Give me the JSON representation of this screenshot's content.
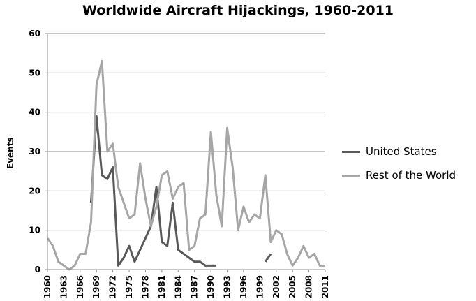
{
  "chart_data": {
    "type": "line",
    "title": "Worldwide Aircraft Hijackings, 1960-2011",
    "ylabel": "Events",
    "xlabel": "",
    "ylim": [
      0,
      60
    ],
    "yticks": [
      0,
      10,
      20,
      30,
      40,
      50,
      60
    ],
    "xtick_labels": [
      "1960",
      "1963",
      "1966",
      "1969",
      "1972",
      "1975",
      "1978",
      "1981",
      "1984",
      "1987",
      "1990",
      "1993",
      "1996",
      "1999",
      "2002",
      "2005",
      "2008",
      "2011"
    ],
    "x": [
      1960,
      1961,
      1962,
      1963,
      1964,
      1965,
      1966,
      1967,
      1968,
      1969,
      1970,
      1971,
      1972,
      1973,
      1974,
      1975,
      1976,
      1977,
      1978,
      1979,
      1980,
      1981,
      1982,
      1983,
      1984,
      1985,
      1986,
      1987,
      1988,
      1989,
      1990,
      1991,
      1992,
      1993,
      1994,
      1995,
      1996,
      1997,
      1998,
      1999,
      2000,
      2001,
      2002,
      2003,
      2004,
      2005,
      2006,
      2007,
      2008,
      2009,
      2010,
      2011
    ],
    "grid": "horizontal",
    "legend_position": "right",
    "series": [
      {
        "name": "United States",
        "color": "#595959",
        "values": [
          null,
          null,
          null,
          null,
          null,
          null,
          null,
          null,
          17,
          39,
          24,
          23,
          26,
          1,
          3,
          6,
          2,
          5,
          8,
          11,
          21,
          7,
          6,
          17,
          5,
          4,
          3,
          2,
          2,
          1,
          1,
          1,
          null,
          null,
          null,
          null,
          null,
          null,
          null,
          null,
          2,
          4,
          null,
          null,
          null,
          null,
          null,
          null,
          null,
          null,
          null,
          null
        ]
      },
      {
        "name": "Rest of the World",
        "color": "#a6a6a6",
        "values": [
          8,
          6,
          2,
          1,
          0,
          1,
          4,
          4,
          12,
          47,
          53,
          30,
          32,
          21,
          17,
          13,
          14,
          27,
          18,
          11,
          16,
          24,
          25,
          18,
          21,
          22,
          5,
          6,
          13,
          14,
          35,
          19,
          11,
          36,
          26,
          10,
          16,
          12,
          14,
          13,
          24,
          7,
          10,
          9,
          4,
          1,
          3,
          6,
          3,
          4,
          1,
          1
        ]
      }
    ]
  }
}
